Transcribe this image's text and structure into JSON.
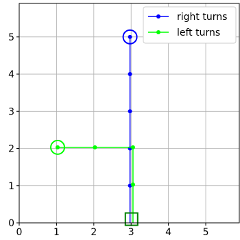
{
  "chart_data": {
    "type": "line",
    "title": "",
    "xlabel": "",
    "ylabel": "",
    "xlim": [
      0,
      5.9
    ],
    "ylim": [
      0,
      5.9
    ],
    "xticks": [
      0,
      1,
      2,
      3,
      4,
      5
    ],
    "yticks": [
      0,
      1,
      2,
      3,
      4,
      5
    ],
    "grid": true,
    "legend_position": "top-right",
    "series": [
      {
        "name": "right turns",
        "color": "#0000ff",
        "x": [
          2.97,
          2.97,
          2.97,
          2.97,
          2.97,
          2.97
        ],
        "y": [
          0,
          1,
          2,
          3,
          4,
          5
        ],
        "marker_x": [
          2.97,
          2.97,
          2.97,
          2.97,
          2.97
        ],
        "marker_y": [
          1,
          2,
          3,
          4,
          5
        ]
      },
      {
        "name": "left turns",
        "color": "#00ff00",
        "x": [
          3.05,
          3.05,
          3.05,
          2.03,
          1.03
        ],
        "y": [
          0,
          1.03,
          2.03,
          2.03,
          2.03
        ],
        "marker_x": [
          3.05,
          3.05,
          2.03,
          1.03
        ],
        "marker_y": [
          1.03,
          2.03,
          2.03,
          2.03
        ]
      }
    ],
    "annotations": [
      {
        "kind": "circle",
        "x": 2.97,
        "y": 5,
        "color": "#0000ff"
      },
      {
        "kind": "circle",
        "x": 1.03,
        "y": 2.03,
        "color": "#00ff00"
      },
      {
        "kind": "square",
        "x": 3.01,
        "y": 0.1,
        "color": "#008000"
      }
    ]
  }
}
